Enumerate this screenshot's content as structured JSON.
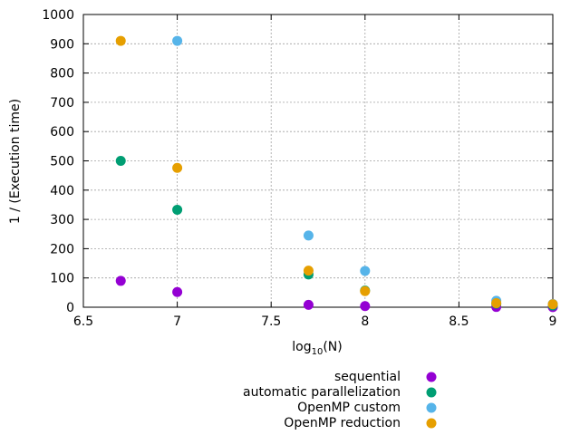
{
  "chart_data": {
    "type": "scatter",
    "xlabel": "log",
    "xlabel_subscript": "10",
    "xlabel_suffix": "(N)",
    "ylabel": "1 / (Execution time)",
    "xlim": [
      6.5,
      9
    ],
    "ylim": [
      0,
      1000
    ],
    "xticks": [
      "6.5",
      "7",
      "7.5",
      "8",
      "8.5",
      "9"
    ],
    "yticks": [
      "0",
      "100",
      "200",
      "300",
      "400",
      "500",
      "600",
      "700",
      "800",
      "900",
      "1000"
    ],
    "grid": true,
    "legend_position": "bottom",
    "series": [
      {
        "name": "sequential",
        "color": "#9400d3",
        "points": [
          [
            6.699,
            90
          ],
          [
            7,
            52
          ],
          [
            7.699,
            8
          ],
          [
            8,
            4
          ],
          [
            8.699,
            1
          ],
          [
            9,
            0.5
          ]
        ]
      },
      {
        "name": "automatic parallelization",
        "color": "#009e73",
        "points": [
          [
            6.699,
            500
          ],
          [
            7,
            333
          ],
          [
            7.699,
            112
          ],
          [
            8,
            57
          ],
          [
            8.699,
            12
          ],
          [
            9,
            6
          ]
        ]
      },
      {
        "name": "OpenMP custom",
        "color": "#56b4e9",
        "points": [
          [
            6.699,
            null
          ],
          [
            7,
            910
          ],
          [
            7.699,
            245
          ],
          [
            8,
            124
          ],
          [
            8.699,
            22
          ],
          [
            9,
            11
          ]
        ]
      },
      {
        "name": "OpenMP reduction",
        "color": "#e69f00",
        "points": [
          [
            6.699,
            910
          ],
          [
            7,
            476
          ],
          [
            7.699,
            125
          ],
          [
            8,
            55
          ],
          [
            8.699,
            14
          ],
          [
            9,
            10
          ]
        ]
      }
    ]
  }
}
